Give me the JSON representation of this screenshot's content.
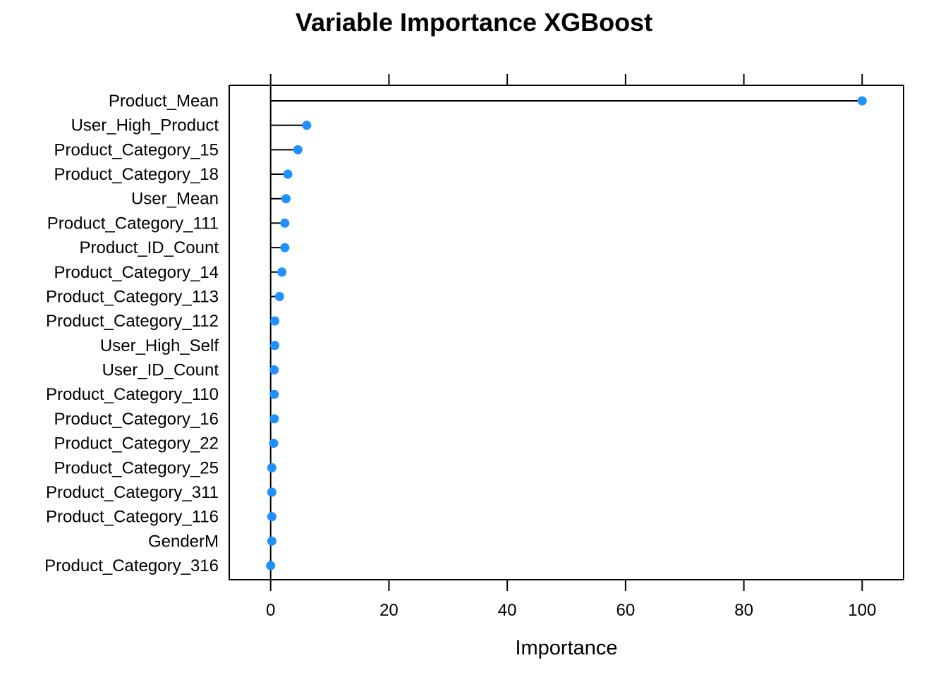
{
  "chart_data": {
    "type": "dotplot",
    "title": "Variable Importance XGBoost",
    "xlabel": "Importance",
    "ylabel": "",
    "xlim": [
      -7,
      107
    ],
    "xticks": [
      0,
      20,
      40,
      60,
      80,
      100
    ],
    "grid": false,
    "legend": "none",
    "point_color": "#1E90FF",
    "categories": [
      "Product_Mean",
      "User_High_Product",
      "Product_Category_15",
      "Product_Category_18",
      "User_Mean",
      "Product_Category_111",
      "Product_ID_Count",
      "Product_Category_14",
      "Product_Category_113",
      "Product_Category_112",
      "User_High_Self",
      "User_ID_Count",
      "Product_Category_110",
      "Product_Category_16",
      "Product_Category_22",
      "Product_Category_25",
      "Product_Category_311",
      "Product_Category_116",
      "GenderM",
      "Product_Category_316"
    ],
    "values": [
      100,
      6.1,
      4.6,
      2.9,
      2.6,
      2.4,
      2.4,
      1.9,
      1.5,
      0.7,
      0.7,
      0.6,
      0.6,
      0.6,
      0.5,
      0.2,
      0.2,
      0.2,
      0.2,
      0.0
    ]
  }
}
